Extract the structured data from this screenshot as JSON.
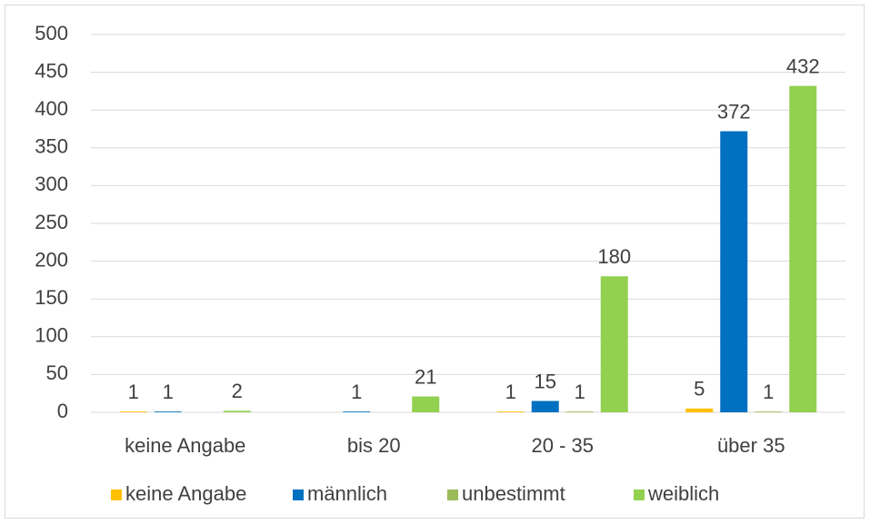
{
  "chart_data": {
    "type": "bar",
    "categories": [
      "keine Angabe",
      "bis 20",
      "20 - 35",
      "über 35"
    ],
    "series": [
      {
        "name": "keine Angabe",
        "color": "#ffc000",
        "values": [
          1,
          null,
          1,
          5
        ]
      },
      {
        "name": "männlich",
        "color": "#0070c0",
        "values": [
          1,
          1,
          15,
          372
        ]
      },
      {
        "name": "unbestimmt",
        "color": "#9bbb59",
        "values": [
          null,
          null,
          1,
          1
        ]
      },
      {
        "name": "weiblich",
        "color": "#92d050",
        "values": [
          2,
          21,
          180,
          432
        ]
      }
    ],
    "ylim": [
      0,
      500
    ],
    "yticks": [
      0,
      50,
      100,
      150,
      200,
      250,
      300,
      350,
      400,
      450,
      500
    ],
    "grid": true,
    "legend": "bottom"
  }
}
